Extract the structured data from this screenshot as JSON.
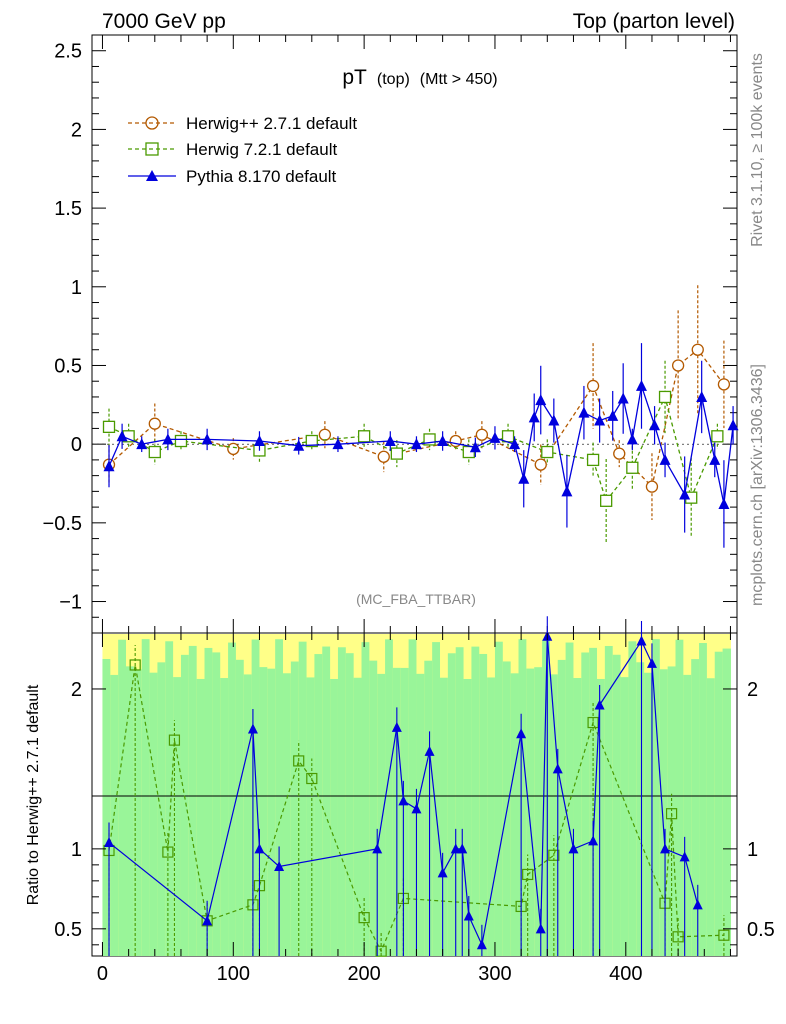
{
  "header": {
    "left": "7000 GeV pp",
    "right": "Top (parton level)"
  },
  "side_text": {
    "rivet": "Rivet 3.1.10, ≥ 100k events",
    "mcplots": "mcplots.cern.ch [arXiv:1306.3436]"
  },
  "chart_data": [
    {
      "type": "scatter",
      "title": "pT",
      "title_sub1": "(top)",
      "title_sub2": "(Mtt > 450)",
      "watermark": "(MC_FBA_TTBAR)",
      "xlim": [
        -8,
        485
      ],
      "ylim": [
        -1.2,
        2.6
      ],
      "yticks": [
        -1,
        -0.5,
        0,
        0.5,
        1,
        1.5,
        2,
        2.5
      ],
      "ytick_labels": [
        "−1",
        "−0.5",
        "0",
        "0.5",
        "1",
        "1.5",
        "2",
        "2.5"
      ],
      "series": [
        {
          "name": "Herwig++ 2.7.1 default",
          "color": "#b35900",
          "marker": "circle",
          "points": [
            [
              5,
              -0.13
            ],
            [
              40,
              0.13
            ],
            [
              100,
              -0.03
            ],
            [
              170,
              0.06
            ],
            [
              215,
              -0.08
            ],
            [
              270,
              0.02
            ],
            [
              290,
              0.06
            ],
            [
              335,
              -0.13
            ],
            [
              375,
              0.37
            ],
            [
              395,
              -0.06
            ],
            [
              420,
              -0.27
            ],
            [
              440,
              0.5
            ],
            [
              455,
              0.6
            ],
            [
              475,
              0.38
            ]
          ]
        },
        {
          "name": "Herwig 7.2.1 default",
          "color": "#4a9a00",
          "marker": "square",
          "points": [
            [
              5,
              0.11
            ],
            [
              20,
              0.05
            ],
            [
              40,
              -0.05
            ],
            [
              60,
              0.02
            ],
            [
              120,
              -0.04
            ],
            [
              160,
              0.02
            ],
            [
              200,
              0.05
            ],
            [
              225,
              -0.06
            ],
            [
              250,
              0.03
            ],
            [
              280,
              -0.05
            ],
            [
              310,
              0.05
            ],
            [
              340,
              -0.05
            ],
            [
              375,
              -0.1
            ],
            [
              385,
              -0.36
            ],
            [
              405,
              -0.15
            ],
            [
              430,
              0.3
            ],
            [
              450,
              -0.34
            ],
            [
              470,
              0.05
            ]
          ]
        },
        {
          "name": "Pythia 8.170 default",
          "color": "#0000dd",
          "marker": "triangle",
          "points": [
            [
              5,
              -0.14
            ],
            [
              15,
              0.05
            ],
            [
              30,
              0.0
            ],
            [
              50,
              0.03
            ],
            [
              80,
              0.03
            ],
            [
              120,
              0.02
            ],
            [
              150,
              -0.01
            ],
            [
              180,
              0.0
            ],
            [
              220,
              0.02
            ],
            [
              240,
              0.0
            ],
            [
              260,
              0.02
            ],
            [
              285,
              -0.02
            ],
            [
              300,
              0.04
            ],
            [
              315,
              0.0
            ],
            [
              322,
              -0.22
            ],
            [
              330,
              0.17
            ],
            [
              335,
              0.28
            ],
            [
              345,
              0.15
            ],
            [
              355,
              -0.3
            ],
            [
              368,
              0.2
            ],
            [
              380,
              0.15
            ],
            [
              390,
              0.18
            ],
            [
              398,
              0.29
            ],
            [
              405,
              0.03
            ],
            [
              412,
              0.37
            ],
            [
              422,
              0.12
            ],
            [
              430,
              -0.1
            ],
            [
              445,
              -0.32
            ],
            [
              458,
              0.3
            ],
            [
              468,
              -0.1
            ],
            [
              475,
              -0.38
            ],
            [
              482,
              0.12
            ]
          ]
        }
      ]
    },
    {
      "type": "line",
      "ylabel": "Ratio to Herwig++ 2.7.1 default",
      "xlim": [
        -8,
        485
      ],
      "ylim": [
        0.33,
        2.35
      ],
      "xticks": [
        0,
        100,
        200,
        300,
        400
      ],
      "xtick_labels": [
        "0",
        "100",
        "200",
        "300",
        "400"
      ],
      "yticks": [
        0.5,
        1,
        2
      ],
      "ytick_labels": [
        "0.5",
        "1",
        "2"
      ],
      "series": [
        {
          "name": "Herwig 7.2.1 default",
          "color": "#4a9a00",
          "points": [
            [
              5,
              0.99
            ],
            [
              25,
              2.15
            ],
            [
              50,
              0.98
            ],
            [
              55,
              1.68
            ],
            [
              80,
              0.55
            ],
            [
              115,
              0.65
            ],
            [
              120,
              0.77
            ],
            [
              150,
              1.55
            ],
            [
              160,
              1.44
            ],
            [
              200,
              0.57
            ],
            [
              213,
              0.36
            ],
            [
              230,
              0.69
            ],
            [
              320,
              0.64
            ],
            [
              325,
              0.84
            ],
            [
              345,
              0.96
            ],
            [
              375,
              1.79
            ],
            [
              430,
              0.66
            ],
            [
              435,
              1.22
            ],
            [
              440,
              0.45
            ],
            [
              475,
              0.46
            ]
          ]
        },
        {
          "name": "Pythia 8.170 default",
          "color": "#0000dd",
          "points": [
            [
              5,
              1.04
            ],
            [
              80,
              0.55
            ],
            [
              115,
              1.75
            ],
            [
              120,
              1.0
            ],
            [
              135,
              0.89
            ],
            [
              210,
              1.0
            ],
            [
              225,
              1.76
            ],
            [
              230,
              1.3
            ],
            [
              240,
              1.25
            ],
            [
              250,
              1.61
            ],
            [
              260,
              0.85
            ],
            [
              270,
              1.0
            ],
            [
              275,
              1.0
            ],
            [
              280,
              0.58
            ],
            [
              290,
              0.4
            ],
            [
              320,
              1.72
            ],
            [
              335,
              0.5
            ],
            [
              340,
              2.33
            ],
            [
              348,
              1.5
            ],
            [
              360,
              1.0
            ],
            [
              375,
              1.05
            ],
            [
              380,
              1.9
            ],
            [
              412,
              2.3
            ],
            [
              420,
              2.16
            ],
            [
              430,
              1.0
            ],
            [
              445,
              0.95
            ],
            [
              455,
              0.65
            ]
          ]
        }
      ]
    }
  ]
}
